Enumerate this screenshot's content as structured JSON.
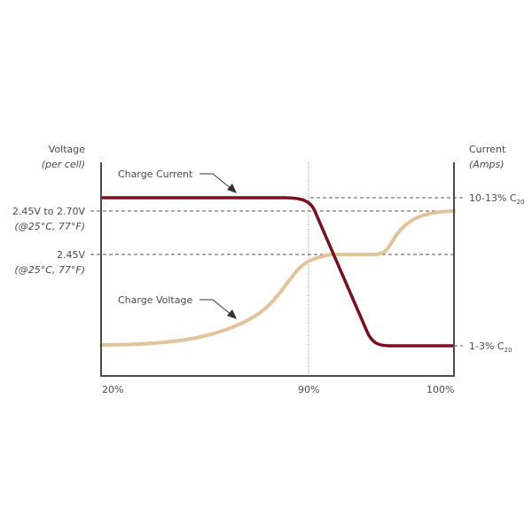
{
  "left_axis": {
    "title": "Voltage",
    "subtitle": "(per cell)",
    "ticks": [
      {
        "label": "2.45V to 2.70V",
        "note": "(@25°C, 77°F)"
      },
      {
        "label": "2.45V",
        "note": "(@25°C, 77°F)"
      }
    ]
  },
  "right_axis": {
    "title": "Current",
    "subtitle": "(Amps)",
    "ticks": [
      {
        "label": "10-13% C",
        "sub": "20"
      },
      {
        "label": "1-3% C",
        "sub": "20"
      }
    ]
  },
  "x_axis": {
    "ticks": [
      "20%",
      "90%",
      "100%"
    ]
  },
  "series": [
    {
      "name": "Charge Current",
      "color": "#7a0f1f"
    },
    {
      "name": "Charge Voltage",
      "color": "#e0c49a"
    }
  ],
  "colors": {
    "axis": "#4a4a4a",
    "grid": "#555555"
  }
}
